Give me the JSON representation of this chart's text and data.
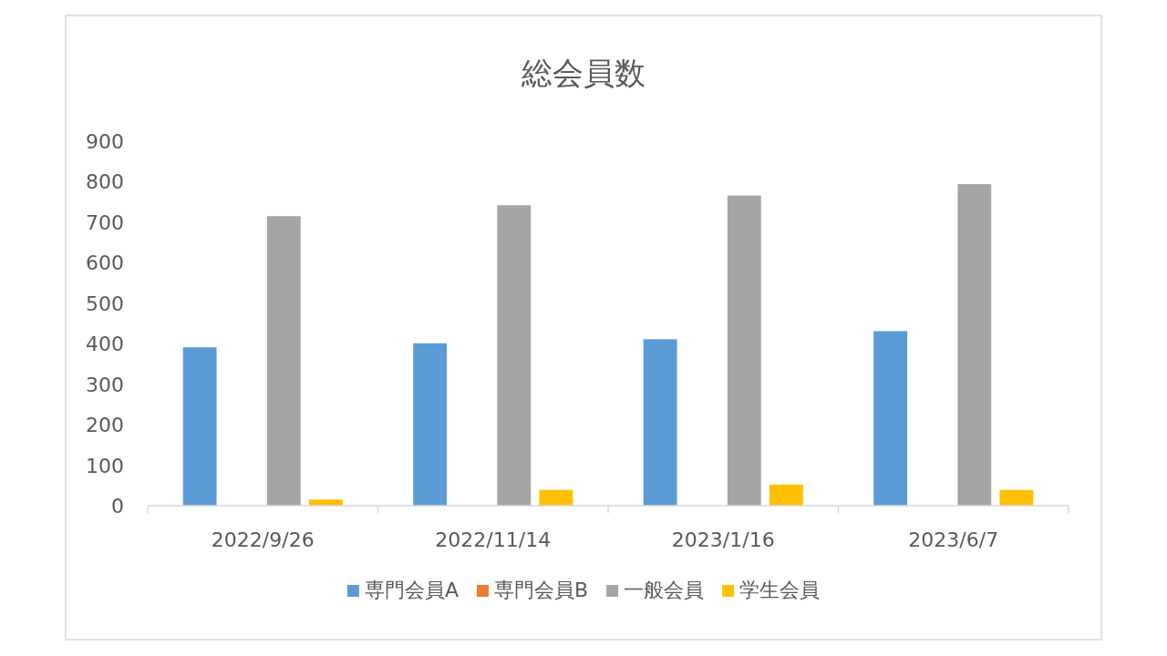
{
  "chart_data": {
    "type": "bar",
    "title": "総会員数",
    "categories": [
      "2022/9/26",
      "2022/11/14",
      "2023/1/16",
      "2023/6/7"
    ],
    "series": [
      {
        "name": "専門会員A",
        "color": "#5b9bd5",
        "values": [
          391,
          401,
          411,
          431
        ]
      },
      {
        "name": "専門会員B",
        "color": "#ed7d31",
        "values": [
          0,
          0,
          0,
          0
        ]
      },
      {
        "name": "一般会員",
        "color": "#a5a5a5",
        "values": [
          715,
          742,
          766,
          794
        ]
      },
      {
        "name": "学生会員",
        "color": "#ffc000",
        "values": [
          15,
          39,
          52,
          39
        ]
      }
    ],
    "ylim": [
      0,
      900
    ],
    "yticks": [
      0,
      100,
      200,
      300,
      400,
      500,
      600,
      700,
      800,
      900
    ],
    "grid": false,
    "legend": "bottom"
  }
}
